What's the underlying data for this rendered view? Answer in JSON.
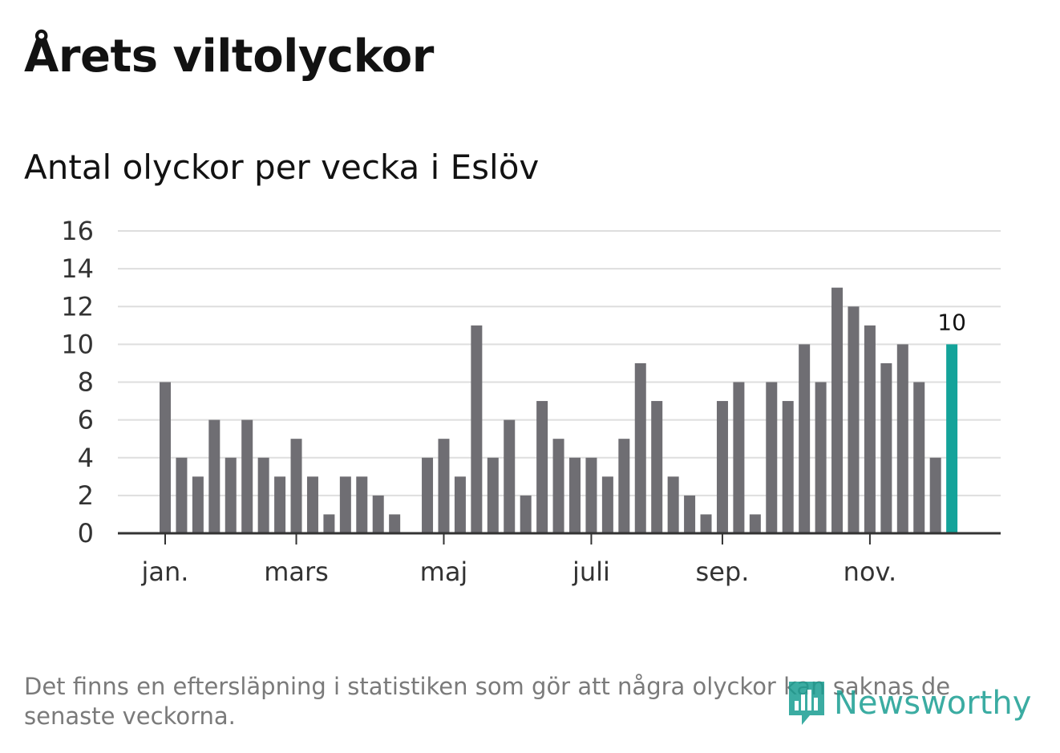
{
  "header": {
    "title": "Årets viltolyckor",
    "subtitle": "Antal olyckor per vecka i Eslöv"
  },
  "footer": {
    "note": "Det finns en eftersläpning i statistiken som gör att några olyckor kan saknas de senaste veckorna.",
    "logo_text": "Newsworthy",
    "logo_icon": "newsworthy-logo-icon"
  },
  "chart_data": {
    "type": "bar",
    "title": "Antal olyckor per vecka i Eslöv",
    "xlabel": "",
    "ylabel": "",
    "ylim": [
      0,
      16
    ],
    "yticks": [
      0,
      2,
      4,
      6,
      8,
      10,
      12,
      14,
      16
    ],
    "grid": true,
    "x_month_labels": [
      {
        "label": "jan.",
        "week": 1
      },
      {
        "label": "mars",
        "week": 9
      },
      {
        "label": "maj",
        "week": 18
      },
      {
        "label": "juli",
        "week": 27
      },
      {
        "label": "sep.",
        "week": 35
      },
      {
        "label": "nov.",
        "week": 44
      }
    ],
    "weeks": [
      1,
      2,
      3,
      4,
      5,
      6,
      7,
      8,
      9,
      10,
      11,
      12,
      13,
      14,
      15,
      16,
      17,
      18,
      19,
      20,
      21,
      22,
      23,
      24,
      25,
      26,
      27,
      28,
      29,
      30,
      31,
      32,
      33,
      34,
      35,
      36,
      37,
      38,
      39,
      40,
      41,
      42,
      43,
      44,
      45,
      46,
      47,
      48,
      49
    ],
    "values": [
      8,
      4,
      3,
      6,
      4,
      6,
      4,
      3,
      5,
      3,
      1,
      3,
      3,
      2,
      1,
      0,
      4,
      5,
      3,
      11,
      4,
      6,
      2,
      7,
      5,
      4,
      4,
      3,
      5,
      9,
      7,
      3,
      2,
      1,
      7,
      8,
      1,
      8,
      7,
      10,
      8,
      13,
      12,
      11,
      9,
      10,
      8,
      4,
      10
    ],
    "highlight_last": {
      "week": 49,
      "value": 10,
      "label": "10"
    },
    "colors": {
      "bar": "#6f6e73",
      "highlight": "#14a39a",
      "grid": "#dedede",
      "axis": "#333333"
    }
  }
}
